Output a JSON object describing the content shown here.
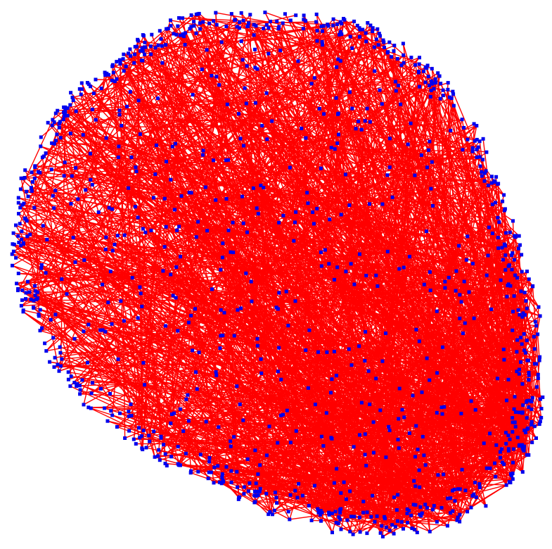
{
  "graph": {
    "type": "node-link",
    "edge_color": "#ff0000",
    "node_color": "#0000ee",
    "node_shape": "square",
    "background": "#ffffff",
    "labels": []
  }
}
